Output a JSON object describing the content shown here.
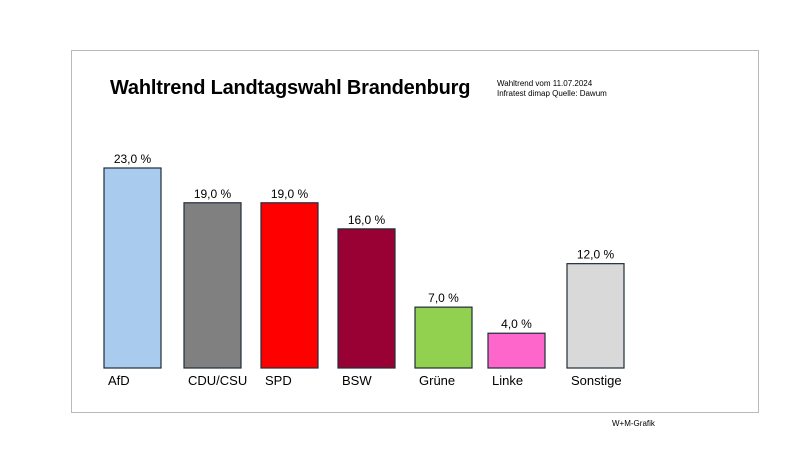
{
  "title": "Wahltrend  Landtagswahl Brandenburg",
  "source_lines": [
    "Wahltrend vom 11.07.2024",
    "Infratest dimap Quelle: Dawum"
  ],
  "credit": "W+M-Grafik",
  "chart_data": {
    "type": "bar",
    "title": "Wahltrend  Landtagswahl Brandenburg",
    "categories": [
      "AfD",
      "CDU/CSU",
      "SPD",
      "BSW",
      "Grüne",
      "Linke",
      "Sonstige"
    ],
    "values": [
      23.0,
      19.0,
      19.0,
      16.0,
      7.0,
      4.0,
      12.0
    ],
    "value_labels": [
      "23,0 %",
      "19,0 %",
      "19,0 %",
      "16,0 %",
      "7,0 %",
      "4,0 %",
      "12,0 %"
    ],
    "colors": [
      "#a9cbee",
      "#808080",
      "#ff0000",
      "#990033",
      "#92d050",
      "#ff66cc",
      "#d9d9d9"
    ],
    "xlabel": "",
    "ylabel": "",
    "ylim": [
      0,
      23
    ],
    "grid": false,
    "legend": "none"
  }
}
